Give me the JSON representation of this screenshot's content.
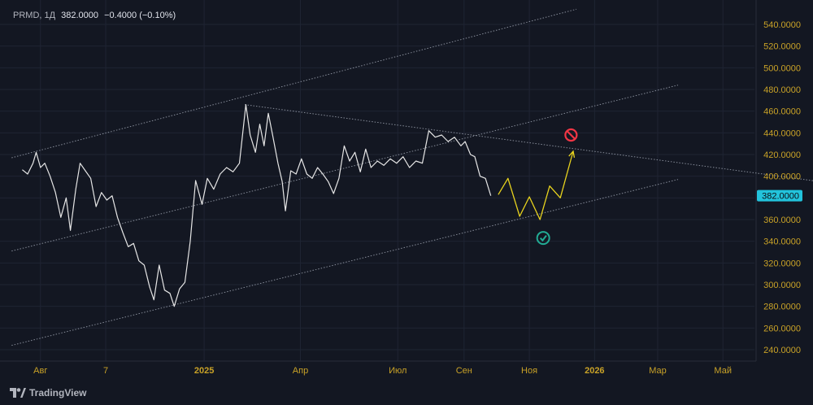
{
  "header": {
    "symbol": "PRMD, 1Д",
    "last": "382.0000",
    "change": "−0.4000 (−0.10%)"
  },
  "brand": {
    "label": "TradingView"
  },
  "colors": {
    "background": "#131722",
    "grid": "#1f2433",
    "price_line": "#e6e6e6",
    "projection": "#e8d31e",
    "channel": "#9aa0ad",
    "price_tag": "#22c3dc",
    "axis_text": "#c9a227"
  },
  "chart_data": {
    "type": "line",
    "x_ticks": [
      "Авг",
      "7",
      "2025",
      "Апр",
      "Июл",
      "Сен",
      "Ноя",
      "2026",
      "Мар",
      "Май"
    ],
    "y_ticks": [
      "540.0000",
      "520.0000",
      "500.0000",
      "480.0000",
      "460.0000",
      "440.0000",
      "420.0000",
      "400.0000",
      "380.0000",
      "360.0000",
      "340.0000",
      "320.0000",
      "300.0000",
      "280.0000",
      "260.0000",
      "240.0000"
    ],
    "ylim": [
      232,
      548
    ],
    "last_price_label": "382.0000",
    "series": [
      {
        "values": [
          {
            "x": "2024-07-15",
            "y": 406
          },
          {
            "x": "2024-07-20",
            "y": 402
          },
          {
            "x": "2024-07-25",
            "y": 412
          },
          {
            "x": "2024-07-28",
            "y": 422
          },
          {
            "x": "2024-08-01",
            "y": 408
          },
          {
            "x": "2024-08-05",
            "y": 412
          },
          {
            "x": "2024-08-10",
            "y": 400
          },
          {
            "x": "2024-08-15",
            "y": 385
          },
          {
            "x": "2024-08-20",
            "y": 362
          },
          {
            "x": "2024-08-25",
            "y": 380
          },
          {
            "x": "2024-08-29",
            "y": 350
          },
          {
            "x": "2024-09-03",
            "y": 388
          },
          {
            "x": "2024-09-07",
            "y": 412
          },
          {
            "x": "2024-09-12",
            "y": 405
          },
          {
            "x": "2024-09-17",
            "y": 398
          },
          {
            "x": "2024-09-22",
            "y": 372
          },
          {
            "x": "2024-09-27",
            "y": 385
          },
          {
            "x": "2024-10-02",
            "y": 378
          },
          {
            "x": "2024-10-07",
            "y": 382
          },
          {
            "x": "2024-10-12",
            "y": 362
          },
          {
            "x": "2024-10-17",
            "y": 348
          },
          {
            "x": "2024-10-22",
            "y": 335
          },
          {
            "x": "2024-10-27",
            "y": 338
          },
          {
            "x": "2024-11-01",
            "y": 322
          },
          {
            "x": "2024-11-06",
            "y": 318
          },
          {
            "x": "2024-11-11",
            "y": 298
          },
          {
            "x": "2024-11-15",
            "y": 286
          },
          {
            "x": "2024-11-20",
            "y": 318
          },
          {
            "x": "2024-11-25",
            "y": 295
          },
          {
            "x": "2024-11-30",
            "y": 292
          },
          {
            "x": "2024-12-04",
            "y": 280
          },
          {
            "x": "2024-12-09",
            "y": 296
          },
          {
            "x": "2024-12-14",
            "y": 302
          },
          {
            "x": "2024-12-19",
            "y": 340
          },
          {
            "x": "2024-12-24",
            "y": 396
          },
          {
            "x": "2024-12-30",
            "y": 374
          },
          {
            "x": "2025-01-04",
            "y": 398
          },
          {
            "x": "2025-01-10",
            "y": 388
          },
          {
            "x": "2025-01-16",
            "y": 402
          },
          {
            "x": "2025-01-22",
            "y": 408
          },
          {
            "x": "2025-01-28",
            "y": 404
          },
          {
            "x": "2025-02-03",
            "y": 412
          },
          {
            "x": "2025-02-09",
            "y": 466
          },
          {
            "x": "2025-02-13",
            "y": 438
          },
          {
            "x": "2025-02-18",
            "y": 422
          },
          {
            "x": "2025-02-22",
            "y": 448
          },
          {
            "x": "2025-02-26",
            "y": 428
          },
          {
            "x": "2025-03-02",
            "y": 458
          },
          {
            "x": "2025-03-06",
            "y": 438
          },
          {
            "x": "2025-03-11",
            "y": 412
          },
          {
            "x": "2025-03-15",
            "y": 395
          },
          {
            "x": "2025-03-18",
            "y": 368
          },
          {
            "x": "2025-03-23",
            "y": 405
          },
          {
            "x": "2025-03-28",
            "y": 402
          },
          {
            "x": "2025-04-02",
            "y": 416
          },
          {
            "x": "2025-04-07",
            "y": 402
          },
          {
            "x": "2025-04-12",
            "y": 398
          },
          {
            "x": "2025-04-17",
            "y": 408
          },
          {
            "x": "2025-04-22",
            "y": 402
          },
          {
            "x": "2025-04-27",
            "y": 395
          },
          {
            "x": "2025-05-02",
            "y": 384
          },
          {
            "x": "2025-05-07",
            "y": 398
          },
          {
            "x": "2025-05-12",
            "y": 428
          },
          {
            "x": "2025-05-17",
            "y": 414
          },
          {
            "x": "2025-05-22",
            "y": 422
          },
          {
            "x": "2025-05-27",
            "y": 404
          },
          {
            "x": "2025-06-01",
            "y": 425
          },
          {
            "x": "2025-06-06",
            "y": 408
          },
          {
            "x": "2025-06-12",
            "y": 414
          },
          {
            "x": "2025-06-18",
            "y": 410
          },
          {
            "x": "2025-06-24",
            "y": 416
          },
          {
            "x": "2025-06-30",
            "y": 412
          },
          {
            "x": "2025-07-06",
            "y": 418
          },
          {
            "x": "2025-07-12",
            "y": 408
          },
          {
            "x": "2025-07-18",
            "y": 414
          },
          {
            "x": "2025-07-24",
            "y": 412
          },
          {
            "x": "2025-07-30",
            "y": 442
          },
          {
            "x": "2025-08-05",
            "y": 436
          },
          {
            "x": "2025-08-11",
            "y": 438
          },
          {
            "x": "2025-08-17",
            "y": 432
          },
          {
            "x": "2025-08-23",
            "y": 436
          },
          {
            "x": "2025-08-29",
            "y": 428
          },
          {
            "x": "2025-09-02",
            "y": 432
          },
          {
            "x": "2025-09-07",
            "y": 420
          },
          {
            "x": "2025-09-11",
            "y": 418
          },
          {
            "x": "2025-09-16",
            "y": 400
          },
          {
            "x": "2025-09-21",
            "y": 398
          },
          {
            "x": "2025-09-26",
            "y": 382
          }
        ]
      },
      {
        "values": [
          {
            "x": "2025-10-03",
            "y": 383
          },
          {
            "x": "2025-10-12",
            "y": 398
          },
          {
            "x": "2025-10-23",
            "y": 363
          },
          {
            "x": "2025-11-01",
            "y": 381
          },
          {
            "x": "2025-11-11",
            "y": 360
          },
          {
            "x": "2025-11-20",
            "y": 391
          },
          {
            "x": "2025-11-30",
            "y": 380
          },
          {
            "x": "2025-12-12",
            "y": 423
          }
        ]
      }
    ],
    "trendlines": [
      {
        "role": "resistance",
        "from": {
          "x": "2025-02-08",
          "y": 466
        },
        "to": {
          "x": "2026-08-15",
          "y": 393
        }
      },
      {
        "role": "channel-top",
        "from": {
          "x": "2024-07-05",
          "y": 417
        },
        "to": {
          "x": "2025-12-15",
          "y": 554
        }
      },
      {
        "role": "channel-middle",
        "from": {
          "x": "2024-07-05",
          "y": 331
        },
        "to": {
          "x": "2026-03-20",
          "y": 484
        }
      },
      {
        "role": "channel-bottom",
        "from": {
          "x": "2024-07-05",
          "y": 244
        },
        "to": {
          "x": "2026-03-20",
          "y": 397
        }
      }
    ],
    "markers": [
      {
        "name": "invalidation-marker",
        "x": "2025-12-10",
        "y": 438,
        "color": "#f23645"
      },
      {
        "name": "target-check-marker",
        "x": "2025-11-14",
        "y": 343,
        "color": "#22ab94"
      }
    ]
  }
}
